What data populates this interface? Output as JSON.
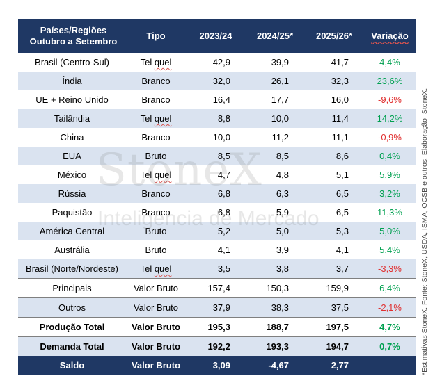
{
  "header": {
    "col0_line1": "Países/Regiões",
    "col0_line2": "Outubro a Setembro",
    "col1": "Tipo",
    "col2": "2023/24",
    "col3": "2024/25*",
    "col4": "2025/26*",
    "col5": "Variação"
  },
  "rows": [
    {
      "pais": "Brasil (Centro-Sul)",
      "tipo": "Tel quel",
      "v2324": "42,9",
      "v2425": "39,9",
      "v2526": "41,7",
      "var": "4,4%"
    },
    {
      "pais": "Índia",
      "tipo": "Branco",
      "v2324": "32,0",
      "v2425": "26,1",
      "v2526": "32,3",
      "var": "23,6%"
    },
    {
      "pais": "UE + Reino Unido",
      "tipo": "Branco",
      "v2324": "16,4",
      "v2425": "17,7",
      "v2526": "16,0",
      "var": "-9,6%"
    },
    {
      "pais": "Tailândia",
      "tipo": "Tel quel",
      "v2324": "8,8",
      "v2425": "10,0",
      "v2526": "11,4",
      "var": "14,2%"
    },
    {
      "pais": "China",
      "tipo": "Branco",
      "v2324": "10,0",
      "v2425": "11,2",
      "v2526": "11,1",
      "var": "-0,9%"
    },
    {
      "pais": "EUA",
      "tipo": "Bruto",
      "v2324": "8,5",
      "v2425": "8,5",
      "v2526": "8,6",
      "var": "0,4%"
    },
    {
      "pais": "México",
      "tipo": "Tel quel",
      "v2324": "4,7",
      "v2425": "4,8",
      "v2526": "5,1",
      "var": "5,9%"
    },
    {
      "pais": "Rússia",
      "tipo": "Branco",
      "v2324": "6,8",
      "v2425": "6,3",
      "v2526": "6,5",
      "var": "3,2%"
    },
    {
      "pais": "Paquistão",
      "tipo": "Branco",
      "v2324": "6,8",
      "v2425": "5,9",
      "v2526": "6,5",
      "var": "11,3%"
    },
    {
      "pais": "América Central",
      "tipo": "Bruto",
      "v2324": "5,2",
      "v2425": "5,0",
      "v2526": "5,3",
      "var": "5,0%"
    },
    {
      "pais": "Austrália",
      "tipo": "Bruto",
      "v2324": "4,1",
      "v2425": "3,9",
      "v2526": "4,1",
      "var": "5,4%"
    },
    {
      "pais": "Brasil (Norte/Nordeste)",
      "tipo": "Tel quel",
      "v2324": "3,5",
      "v2425": "3,8",
      "v2526": "3,7",
      "var": "-3,3%"
    },
    {
      "pais": "Principais",
      "tipo": "Valor Bruto",
      "v2324": "157,4",
      "v2425": "150,3",
      "v2526": "159,9",
      "var": "6,4%"
    },
    {
      "pais": "Outros",
      "tipo": "Valor Bruto",
      "v2324": "37,9",
      "v2425": "38,3",
      "v2526": "37,5",
      "var": "-2,1%"
    },
    {
      "pais": "Produção Total",
      "tipo": "Valor Bruto",
      "v2324": "195,3",
      "v2425": "188,7",
      "v2526": "197,5",
      "var": "4,7%"
    },
    {
      "pais": "Demanda Total",
      "tipo": "Valor Bruto",
      "v2324": "192,2",
      "v2425": "193,3",
      "v2526": "194,7",
      "var": "0,7%"
    },
    {
      "pais": "Saldo",
      "tipo": "Valor Bruto",
      "v2324": "3,09",
      "v2425": "-4,67",
      "v2526": "2,77",
      "var": ""
    }
  ],
  "watermark": {
    "logo": "StoneX",
    "subtitle": "Inteligência de Mercado"
  },
  "source_note": "*Estimativas StoneX. Fonte: StoneX, USDA, ISMA, OCSB e outros. Elaboração: StoneX.",
  "colors": {
    "header_bg": "#1f3864",
    "stripe_bg": "#dae3f0",
    "positive": "#00a050",
    "negative": "#e03030"
  }
}
